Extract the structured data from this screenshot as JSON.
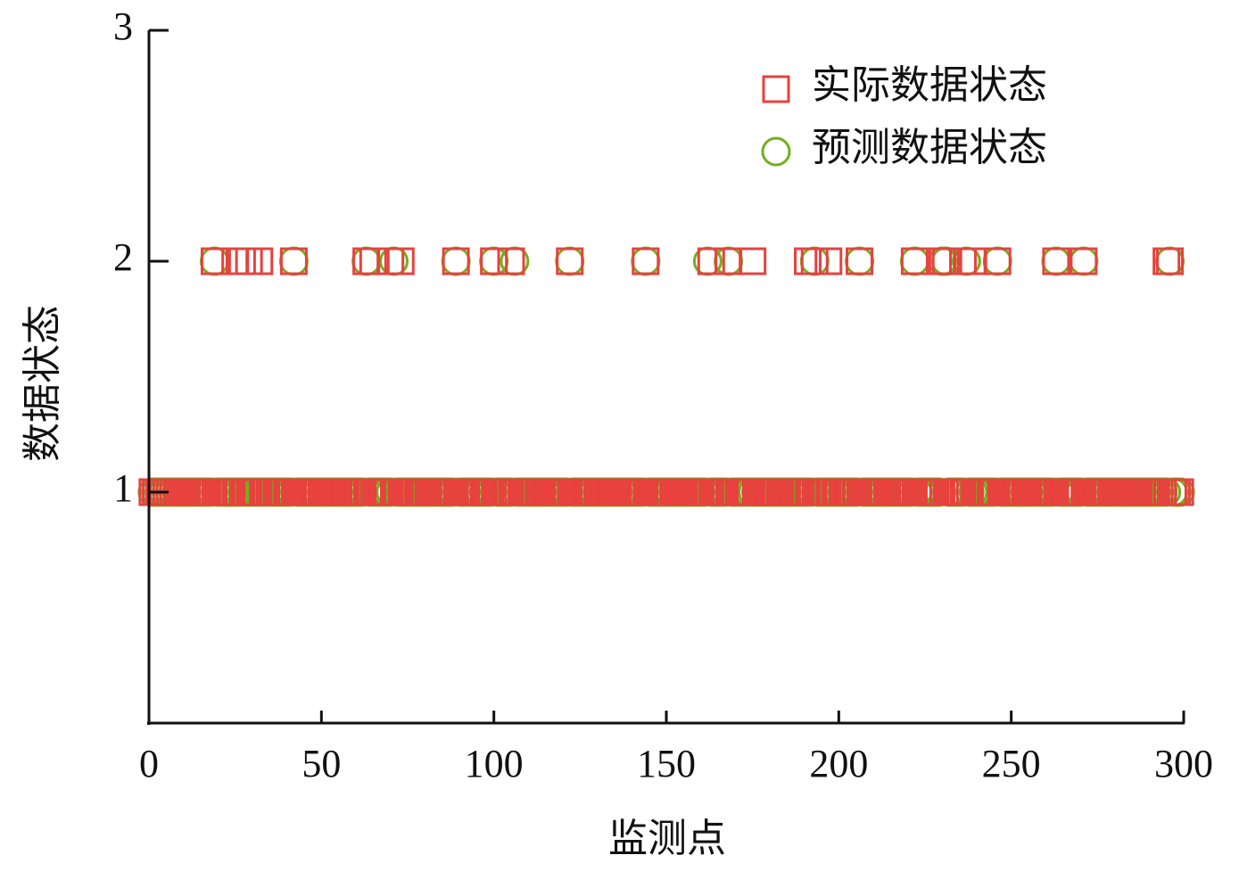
{
  "chart_data": {
    "type": "scatter",
    "xlabel": "监测点",
    "ylabel": "数据状态",
    "xlim": [
      0,
      300
    ],
    "xticks": [
      0,
      50,
      100,
      150,
      200,
      250,
      300
    ],
    "ylim": [
      0,
      3
    ],
    "yticks": [
      1,
      2,
      3
    ],
    "legend": "upper right",
    "x": [
      1,
      2,
      3,
      4,
      5,
      6,
      7,
      8,
      9,
      10,
      11,
      12,
      13,
      14,
      15,
      16,
      17,
      18,
      19,
      20,
      21,
      22,
      23,
      24,
      25,
      26,
      27,
      28,
      29,
      30,
      31,
      32,
      33,
      34,
      35,
      36,
      37,
      38,
      39,
      40,
      41,
      42,
      43,
      44,
      45,
      46,
      47,
      48,
      49,
      50,
      51,
      52,
      53,
      54,
      55,
      56,
      57,
      58,
      59,
      60,
      61,
      62,
      63,
      64,
      65,
      66,
      67,
      68,
      69,
      70,
      71,
      72,
      73,
      74,
      75,
      76,
      77,
      78,
      79,
      80,
      81,
      82,
      83,
      84,
      85,
      86,
      87,
      88,
      89,
      90,
      91,
      92,
      93,
      94,
      95,
      96,
      97,
      98,
      99,
      100,
      101,
      102,
      103,
      104,
      105,
      106,
      107,
      108,
      109,
      110,
      111,
      112,
      113,
      114,
      115,
      116,
      117,
      118,
      119,
      120,
      121,
      122,
      123,
      124,
      125,
      126,
      127,
      128,
      129,
      130,
      131,
      132,
      133,
      134,
      135,
      136,
      137,
      138,
      139,
      140,
      141,
      142,
      143,
      144,
      145,
      146,
      147,
      148,
      149,
      150,
      151,
      152,
      153,
      154,
      155,
      156,
      157,
      158,
      159,
      160,
      161,
      162,
      163,
      164,
      165,
      166,
      167,
      168,
      169,
      170,
      171,
      172,
      173,
      174,
      175,
      176,
      177,
      178,
      179,
      180,
      181,
      182,
      183,
      184,
      185,
      186,
      187,
      188,
      189,
      190,
      191,
      192,
      193,
      194,
      195,
      196,
      197,
      198,
      199,
      200,
      201,
      202,
      203,
      204,
      205,
      206,
      207,
      208,
      209,
      210,
      211,
      212,
      213,
      214,
      215,
      216,
      217,
      218,
      219,
      220,
      221,
      222,
      223,
      224,
      225,
      226,
      227,
      228,
      229,
      230,
      231,
      232,
      233,
      234,
      235,
      236,
      237,
      238,
      239,
      240,
      241,
      242,
      243,
      244,
      245,
      246,
      247,
      248,
      249,
      250,
      251,
      252,
      253,
      254,
      255,
      256,
      257,
      258,
      259,
      260,
      261,
      262,
      263,
      264,
      265,
      266,
      267,
      268,
      269,
      270,
      271,
      272,
      273,
      274,
      275,
      276,
      277,
      278,
      279,
      280,
      281,
      282,
      283,
      284,
      285,
      286,
      287,
      288,
      289,
      290,
      291,
      292,
      293,
      294,
      295,
      296,
      297,
      298,
      299
    ],
    "series": [
      {
        "name": "实际数据状态",
        "marker": "square",
        "color": "#e8413e",
        "values": [
          1,
          1,
          1,
          1,
          1,
          1,
          1,
          1,
          1,
          1,
          1,
          1,
          1,
          1,
          1,
          1,
          1,
          1,
          2,
          1,
          1,
          1,
          1,
          1,
          2,
          1,
          2,
          1,
          2,
          1,
          1,
          2,
          1,
          1,
          1,
          1,
          1,
          1,
          1,
          1,
          1,
          2,
          1,
          1,
          1,
          1,
          1,
          1,
          1,
          1,
          1,
          1,
          1,
          1,
          1,
          1,
          1,
          1,
          1,
          1,
          1,
          1,
          2,
          1,
          2,
          1,
          1,
          1,
          1,
          2,
          1,
          1,
          2,
          1,
          1,
          1,
          1,
          1,
          1,
          1,
          1,
          1,
          1,
          1,
          1,
          1,
          1,
          1,
          2,
          1,
          1,
          1,
          1,
          1,
          1,
          1,
          1,
          1,
          1,
          2,
          1,
          1,
          1,
          1,
          2,
          1,
          1,
          1,
          1,
          1,
          1,
          1,
          1,
          1,
          1,
          1,
          1,
          1,
          1,
          1,
          1,
          2,
          1,
          1,
          1,
          1,
          1,
          1,
          1,
          1,
          1,
          1,
          1,
          1,
          1,
          1,
          1,
          1,
          1,
          1,
          1,
          1,
          1,
          2,
          1,
          1,
          1,
          1,
          1,
          1,
          1,
          1,
          1,
          1,
          1,
          1,
          1,
          1,
          1,
          1,
          1,
          1,
          2,
          1,
          1,
          1,
          1,
          2,
          1,
          1,
          1,
          1,
          1,
          1,
          2,
          1,
          1,
          1,
          1,
          1,
          1,
          1,
          1,
          1,
          1,
          1,
          1,
          1,
          1,
          1,
          2,
          1,
          2,
          1,
          1,
          1,
          2,
          1,
          1,
          1,
          1,
          1,
          1,
          1,
          1,
          2,
          1,
          1,
          1,
          1,
          1,
          1,
          1,
          1,
          1,
          1,
          1,
          1,
          1,
          1,
          1,
          2,
          1,
          1,
          1,
          1,
          1,
          1,
          1,
          2,
          2,
          1,
          1,
          1,
          1,
          2,
          1,
          1,
          2,
          1,
          1,
          1,
          1,
          1,
          1,
          2,
          1,
          1,
          1,
          1,
          1,
          1,
          1,
          1,
          1,
          1,
          1,
          1,
          1,
          1,
          1,
          1,
          2,
          1,
          1,
          1,
          1,
          1,
          1,
          1,
          2,
          1,
          1,
          1,
          1,
          1,
          1,
          1,
          1,
          1,
          1,
          1,
          1,
          1,
          1,
          1,
          1,
          1,
          1,
          1,
          1,
          1,
          1,
          1,
          2,
          2,
          1,
          1,
          1
        ]
      },
      {
        "name": "预测数据状态",
        "marker": "circle",
        "color": "#72b01d",
        "values": [
          1,
          1,
          1,
          1,
          1,
          1,
          1,
          1,
          1,
          1,
          1,
          1,
          1,
          1,
          1,
          1,
          1,
          1,
          2,
          1,
          1,
          1,
          1,
          1,
          1,
          1,
          1,
          1,
          1,
          1,
          1,
          1,
          1,
          1,
          1,
          1,
          1,
          1,
          1,
          1,
          1,
          2,
          1,
          1,
          1,
          1,
          1,
          1,
          1,
          1,
          1,
          1,
          1,
          1,
          1,
          1,
          1,
          1,
          1,
          1,
          1,
          1,
          2,
          1,
          1,
          1,
          1,
          1,
          1,
          1,
          2,
          1,
          1,
          1,
          1,
          1,
          1,
          1,
          1,
          1,
          1,
          1,
          1,
          1,
          1,
          1,
          1,
          1,
          2,
          1,
          1,
          1,
          1,
          1,
          1,
          1,
          1,
          1,
          1,
          2,
          1,
          1,
          1,
          1,
          1,
          2,
          1,
          1,
          1,
          1,
          1,
          1,
          1,
          1,
          1,
          1,
          1,
          1,
          1,
          1,
          1,
          2,
          1,
          1,
          1,
          1,
          1,
          1,
          1,
          1,
          1,
          1,
          1,
          1,
          1,
          1,
          1,
          1,
          1,
          1,
          1,
          1,
          1,
          2,
          1,
          1,
          1,
          1,
          1,
          1,
          1,
          1,
          1,
          1,
          1,
          1,
          1,
          1,
          1,
          1,
          1,
          2,
          1,
          1,
          1,
          1,
          1,
          2,
          1,
          1,
          1,
          1,
          1,
          1,
          1,
          1,
          1,
          1,
          1,
          1,
          1,
          1,
          1,
          1,
          1,
          1,
          1,
          1,
          1,
          1,
          1,
          1,
          2,
          1,
          1,
          1,
          1,
          1,
          1,
          1,
          1,
          1,
          1,
          1,
          1,
          2,
          1,
          1,
          1,
          1,
          1,
          1,
          1,
          1,
          1,
          1,
          1,
          1,
          1,
          1,
          1,
          2,
          1,
          1,
          1,
          1,
          1,
          1,
          1,
          2,
          2,
          1,
          1,
          1,
          1,
          1,
          2,
          1,
          1,
          1,
          1,
          1,
          1,
          1,
          1,
          2,
          1,
          1,
          1,
          1,
          1,
          1,
          1,
          1,
          1,
          1,
          1,
          1,
          1,
          1,
          1,
          1,
          2,
          1,
          1,
          1,
          1,
          1,
          1,
          1,
          2,
          1,
          1,
          1,
          1,
          1,
          1,
          1,
          1,
          1,
          1,
          1,
          1,
          1,
          1,
          1,
          1,
          1,
          1,
          1,
          1,
          1,
          1,
          1,
          1,
          2,
          1,
          1,
          1
        ]
      }
    ]
  }
}
